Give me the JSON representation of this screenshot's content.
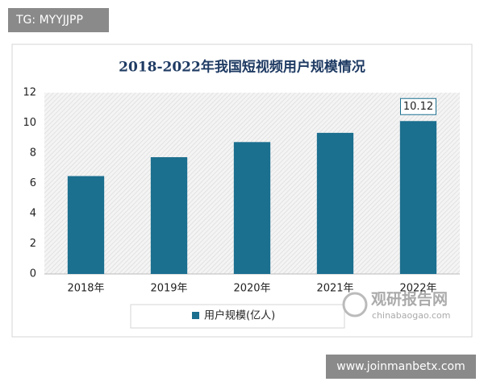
{
  "chart_data": {
    "type": "bar",
    "title": "2018-2022年我国短视频用户规模情况",
    "categories": [
      "2018年",
      "2019年",
      "2020年",
      "2021年",
      "2022年"
    ],
    "series": [
      {
        "name": "用户规模(亿人)",
        "color": "#1b6f8f",
        "values": [
          6.48,
          7.73,
          8.73,
          9.34,
          10.12
        ],
        "value_labels": [
          null,
          null,
          null,
          null,
          "10.12"
        ]
      }
    ],
    "ylim": [
      0,
      12
    ],
    "yticks": [
      0,
      2,
      4,
      6,
      8,
      10,
      12
    ],
    "grid": false,
    "legend": "bottom"
  },
  "watermarks": {
    "top_left": "TG: MYYJJPP",
    "bottom_right": "www.joinmanbetx.com",
    "logo_cn": "观研报告网",
    "logo_en": "chinabaogao.com"
  }
}
